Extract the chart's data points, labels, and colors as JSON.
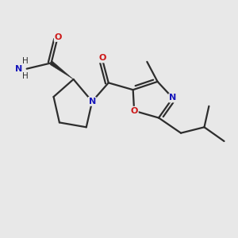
{
  "background_color": "#e8e8e8",
  "bond_color": "#2d2d2d",
  "atom_colors": {
    "N": "#1818bb",
    "O": "#cc1818",
    "C": "#2d2d2d"
  },
  "figsize": [
    3.0,
    3.0
  ],
  "dpi": 100,
  "xlim": [
    0,
    10
  ],
  "ylim": [
    0,
    10
  ]
}
